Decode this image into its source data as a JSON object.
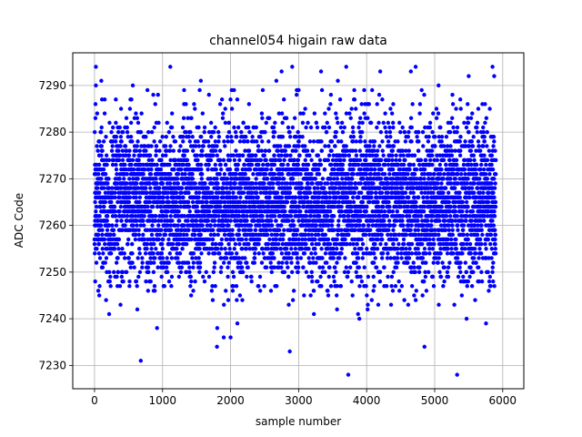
{
  "chart_data": {
    "type": "scatter",
    "title": "channel054 higain raw data",
    "xlabel": "sample number",
    "ylabel": "ADC Code",
    "xlim": [
      -320,
      6310
    ],
    "ylim": [
      7225,
      7297
    ],
    "xticks": [
      0,
      1000,
      2000,
      3000,
      4000,
      5000,
      6000
    ],
    "yticks": [
      7230,
      7240,
      7250,
      7260,
      7270,
      7280,
      7290
    ],
    "grid": true,
    "marker_color": "#0000ff",
    "n_points": 5900,
    "distribution": {
      "center": 7265,
      "spread_sd": 8.5,
      "min": 7228,
      "max": 7294
    },
    "series": [
      {
        "values_sample": [
          {
            "x": 20,
            "y": 7294
          },
          {
            "x": 100,
            "y": 7291
          },
          {
            "x": 680,
            "y": 7231
          },
          {
            "x": 1800,
            "y": 7234
          },
          {
            "x": 1900,
            "y": 7236
          },
          {
            "x": 2000,
            "y": 7236
          },
          {
            "x": 2100,
            "y": 7239
          },
          {
            "x": 2750,
            "y": 7293
          },
          {
            "x": 2870,
            "y": 7233
          },
          {
            "x": 3330,
            "y": 7293
          },
          {
            "x": 3700,
            "y": 7294
          },
          {
            "x": 3730,
            "y": 7228
          },
          {
            "x": 4200,
            "y": 7293
          },
          {
            "x": 4650,
            "y": 7293
          },
          {
            "x": 4720,
            "y": 7294
          },
          {
            "x": 4850,
            "y": 7234
          },
          {
            "x": 5500,
            "y": 7292
          },
          {
            "x": 5850,
            "y": 7294
          }
        ]
      }
    ]
  }
}
